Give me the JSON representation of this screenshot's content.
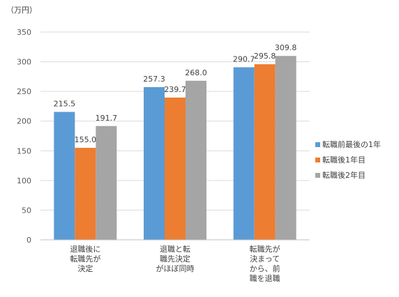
{
  "chart_data": {
    "type": "bar",
    "unit_label": "（万円）",
    "categories": [
      [
        "退職後に",
        "転職先が",
        "決定"
      ],
      [
        "退職と転",
        "職先決定",
        "がほぼ同時"
      ],
      [
        "転職先が",
        "決まって",
        "から、前",
        "職を退職"
      ]
    ],
    "series": [
      {
        "name": "転職前最後の1年",
        "color": "#5b9bd5",
        "values": [
          215.5,
          257.3,
          290.7
        ]
      },
      {
        "name": "転職後1年目",
        "color": "#ed7d31",
        "values": [
          155.0,
          239.7,
          295.8
        ]
      },
      {
        "name": "転職後2年目",
        "color": "#a5a5a5",
        "values": [
          191.7,
          268.0,
          309.8
        ]
      }
    ],
    "ylim": [
      0,
      350
    ],
    "yticks": [
      0,
      50,
      100,
      150,
      200,
      250,
      300,
      350
    ],
    "grid": true,
    "legend_position": "right"
  }
}
